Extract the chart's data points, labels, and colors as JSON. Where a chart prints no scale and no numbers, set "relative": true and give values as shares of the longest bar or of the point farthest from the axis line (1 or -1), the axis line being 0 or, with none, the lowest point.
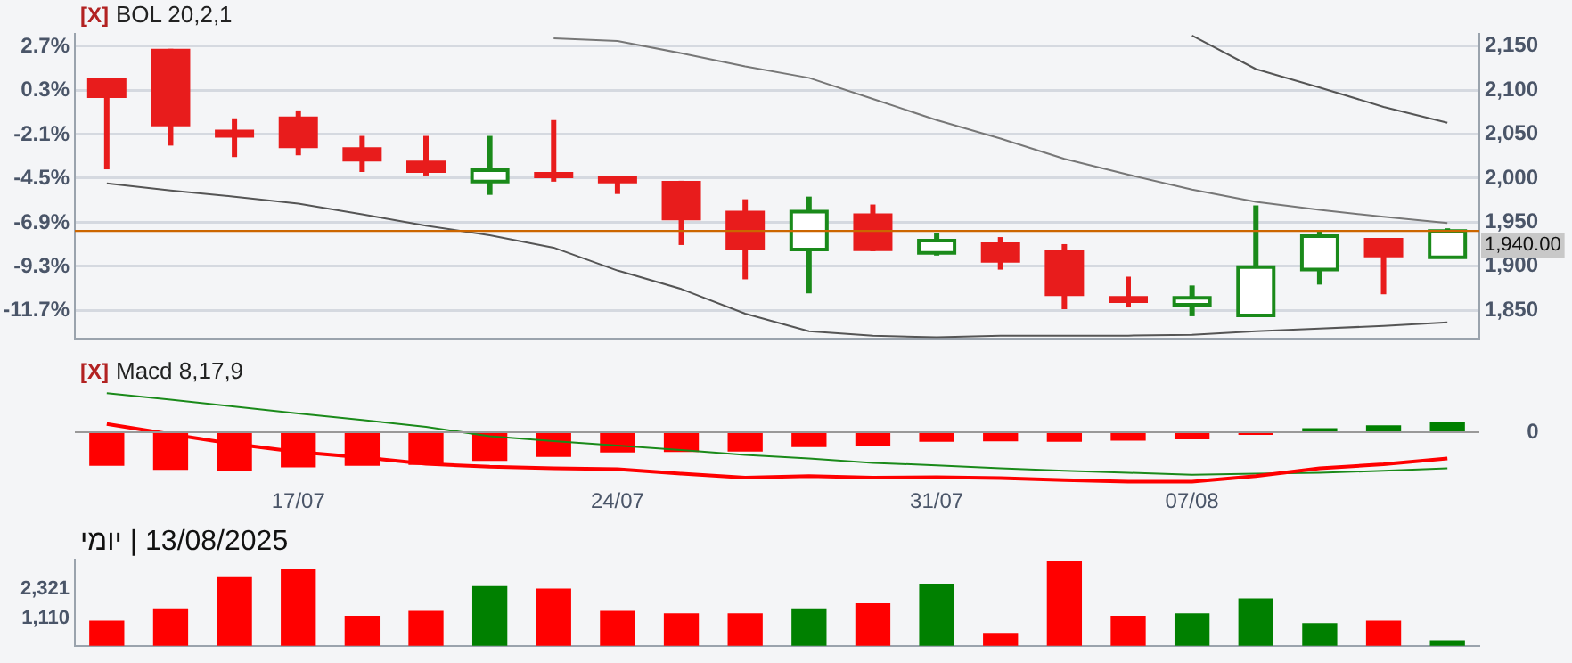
{
  "chart_data": [
    {
      "type": "candlestick",
      "title": "BOL 20,2,1",
      "annotations": [
        "[X]"
      ],
      "categories": [
        null,
        null,
        null,
        null,
        null,
        null,
        null,
        null,
        null,
        null,
        null,
        null,
        null,
        null,
        null,
        null,
        null,
        null,
        null,
        null,
        null,
        null
      ],
      "ohlc": [
        [
          2114,
          2114,
          2010,
          2091
        ],
        [
          2147,
          2147,
          2037,
          2059
        ],
        [
          2055,
          2068,
          2024,
          2046
        ],
        [
          2070,
          2077,
          2026,
          2034
        ],
        [
          2035,
          2048,
          2007,
          2019
        ],
        [
          2020,
          2048,
          2003,
          2006
        ],
        [
          1996,
          2048,
          1981,
          2009
        ],
        [
          2007,
          2066,
          1996,
          2000
        ],
        [
          2002,
          2002,
          1982,
          1994
        ],
        [
          1997,
          1997,
          1924,
          1952
        ],
        [
          1963,
          1976,
          1885,
          1919
        ],
        [
          1919,
          1979,
          1869,
          1962
        ],
        [
          1960,
          1970,
          1917,
          1917
        ],
        [
          1915,
          1938,
          1912,
          1929
        ],
        [
          1927,
          1933,
          1896,
          1904
        ],
        [
          1918,
          1925,
          1851,
          1866
        ],
        [
          1866,
          1888,
          1853,
          1858
        ],
        [
          1856,
          1878,
          1843,
          1864
        ],
        [
          1844,
          1969,
          1844,
          1899
        ],
        [
          1896,
          1941,
          1879,
          1934
        ],
        [
          1932,
          1932,
          1868,
          1910
        ],
        [
          1910,
          1943,
          1910,
          1940
        ]
      ],
      "series": [
        {
          "type": "line",
          "color": "#555555",
          "values": [
            null,
            null,
            null,
            null,
            null,
            null,
            null,
            null,
            null,
            null,
            null,
            null,
            null,
            null,
            null,
            null,
            null,
            2162,
            2124,
            2103,
            2081,
            2063
          ]
        },
        {
          "type": "line",
          "color": "#777777",
          "values": [
            null,
            null,
            null,
            null,
            null,
            null,
            null,
            2159,
            2156,
            2142,
            2127,
            2114,
            2090,
            2066,
            2045,
            2022,
            2004,
            1987,
            1973,
            1964,
            1956,
            1949
          ]
        },
        {
          "type": "line",
          "color": "#555555",
          "values": [
            1994,
            1986,
            1979,
            1971,
            1959,
            1946,
            1935,
            1921,
            1895,
            1874,
            1846,
            1826,
            1821,
            1819,
            1821,
            1821,
            1821,
            1822,
            1826,
            1829,
            1832,
            1836
          ]
        }
      ],
      "marker": "none",
      "ylim": [
        1818,
        2164
      ],
      "yticks": [
        {
          "value": 1850,
          "label": "1,850"
        },
        {
          "value": 1900,
          "label": "1,900"
        },
        {
          "value": 1950,
          "label": "1,950"
        },
        {
          "value": 2000,
          "label": "2,000"
        },
        {
          "value": 2050,
          "label": "2,050"
        },
        {
          "value": 2100,
          "label": "2,100"
        },
        {
          "value": 2150,
          "label": "2,150"
        }
      ],
      "y2lim": [
        -13.2,
        3.4
      ],
      "y2ticks": [
        {
          "value": -11.7,
          "label": "-11.7%"
        },
        {
          "value": -9.3,
          "label": "-9.3%"
        },
        {
          "value": -6.9,
          "label": "-6.9%"
        },
        {
          "value": -4.5,
          "label": "-4.5%"
        },
        {
          "value": -2.1,
          "label": "-2.1%"
        },
        {
          "value": 0.3,
          "label": "0.3%"
        },
        {
          "value": 2.7,
          "label": "2.7%"
        }
      ],
      "ref_lines": [
        {
          "axis": "y",
          "value": 1940,
          "label": "1,940.00",
          "color": "#cc6600"
        }
      ],
      "grid": "y",
      "tick_labels": "y"
    },
    {
      "type": "bar",
      "title": "Macd 8,17,9",
      "annotations": [
        "[X]",
        "0"
      ],
      "relative": true,
      "categories": [
        null,
        null,
        null,
        "17/07",
        null,
        null,
        null,
        null,
        "24/07",
        null,
        null,
        null,
        null,
        "31/07",
        null,
        null,
        null,
        "07/08",
        null,
        null,
        null,
        null
      ],
      "series": [
        {
          "type": "bar",
          "colors": [
            "#ff0000",
            "#ff0000",
            "#ff0000",
            "#ff0000",
            "#ff0000",
            "#ff0000",
            "#ff0000",
            "#ff0000",
            "#ff0000",
            "#ff0000",
            "#ff0000",
            "#ff0000",
            "#ff0000",
            "#ff0000",
            "#ff0000",
            "#ff0000",
            "#ff0000",
            "#ff0000",
            "#ff0000",
            "#008000",
            "#008000",
            "#008000"
          ],
          "values": [
            -0.67,
            -0.75,
            -0.78,
            -0.7,
            -0.67,
            -0.65,
            -0.57,
            -0.49,
            -0.4,
            -0.39,
            -0.38,
            -0.29,
            -0.27,
            -0.18,
            -0.17,
            -0.18,
            -0.16,
            -0.13,
            -0.04,
            0.07,
            0.13,
            0.2
          ]
        },
        {
          "type": "line",
          "color": "#ff0000",
          "values": [
            0.17,
            -0.04,
            -0.24,
            -0.4,
            -0.51,
            -0.64,
            -0.7,
            -0.73,
            -0.75,
            -0.84,
            -0.92,
            -0.89,
            -0.92,
            -0.91,
            -0.93,
            -0.97,
            -1,
            -1,
            -0.89,
            -0.73,
            -0.65,
            -0.53
          ]
        },
        {
          "type": "line",
          "color": "#1a8a1a",
          "values": [
            0.79,
            0.66,
            0.52,
            0.38,
            0.25,
            0.11,
            -0.08,
            -0.18,
            -0.27,
            -0.36,
            -0.46,
            -0.53,
            -0.62,
            -0.67,
            -0.73,
            -0.78,
            -0.82,
            -0.86,
            -0.84,
            -0.82,
            -0.78,
            -0.73
          ]
        }
      ],
      "marker": "none",
      "tick_labels": "x"
    },
    {
      "type": "bar",
      "annotations": [
        "13/08/2025 | יומי"
      ],
      "categories": [
        null,
        null,
        null,
        null,
        null,
        null,
        null,
        null,
        null,
        null,
        null,
        null,
        null,
        null,
        null,
        null,
        null,
        null,
        null,
        null,
        null,
        null
      ],
      "values": [
        1000,
        1500,
        2800,
        3100,
        1200,
        1400,
        2400,
        2300,
        1400,
        1300,
        1300,
        1500,
        1700,
        2500,
        500,
        3400,
        1200,
        1300,
        1900,
        900,
        1000,
        200
      ],
      "colors": [
        "#ff0000",
        "#ff0000",
        "#ff0000",
        "#ff0000",
        "#ff0000",
        "#ff0000",
        "#008000",
        "#ff0000",
        "#ff0000",
        "#ff0000",
        "#ff0000",
        "#008000",
        "#ff0000",
        "#008000",
        "#ff0000",
        "#ff0000",
        "#ff0000",
        "#008000",
        "#008000",
        "#008000",
        "#ff0000",
        "#008000"
      ],
      "ylim": [
        0,
        3500
      ],
      "yticks": [
        {
          "value": 1110,
          "label": "1,110"
        },
        {
          "value": 2321,
          "label": "2,321"
        }
      ],
      "tick_labels": "y"
    }
  ]
}
